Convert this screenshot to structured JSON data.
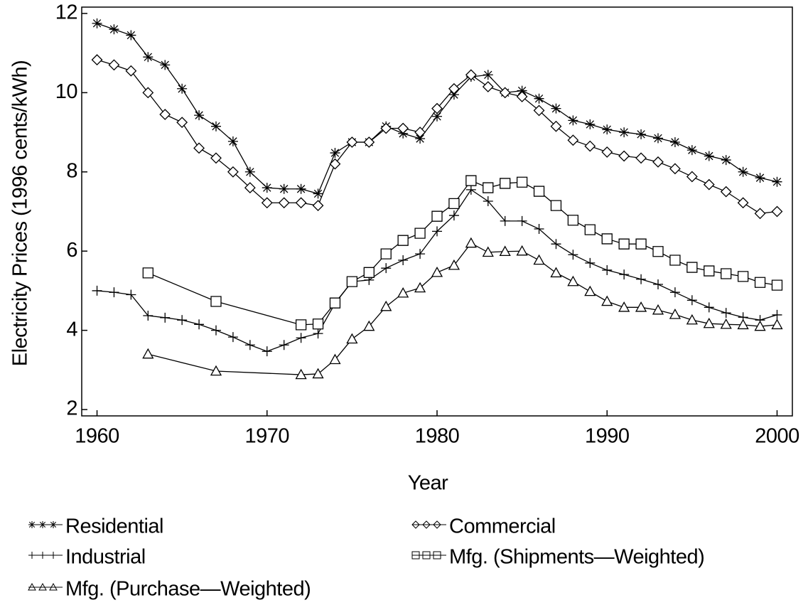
{
  "chart_data": {
    "type": "line",
    "x_label": "Year",
    "y_label": "Electricity Prices (1996 cents/kWh)",
    "xlim": [
      1959.1,
      2000.9
    ],
    "ylim": [
      1.84,
      12.16
    ],
    "xticks": [
      1960,
      1970,
      1980,
      1990,
      2000
    ],
    "yticks": [
      2,
      4,
      6,
      8,
      10,
      12
    ],
    "x": [
      1960,
      1961,
      1962,
      1963,
      1964,
      1965,
      1966,
      1967,
      1968,
      1969,
      1970,
      1971,
      1972,
      1973,
      1974,
      1975,
      1976,
      1977,
      1978,
      1979,
      1980,
      1981,
      1982,
      1983,
      1984,
      1985,
      1986,
      1987,
      1988,
      1989,
      1990,
      1991,
      1992,
      1993,
      1994,
      1995,
      1996,
      1997,
      1998,
      1999,
      2000
    ],
    "series": [
      {
        "name": "Residential",
        "color": "#000000",
        "marker": "star",
        "values": [
          11.75,
          11.6,
          11.45,
          10.9,
          10.7,
          10.1,
          9.43,
          9.15,
          8.77,
          8.0,
          7.6,
          7.57,
          7.57,
          7.45,
          8.48,
          8.75,
          8.75,
          9.15,
          8.97,
          8.84,
          9.4,
          9.95,
          10.4,
          10.45,
          10.0,
          10.05,
          9.85,
          9.6,
          9.3,
          9.2,
          9.07,
          9.0,
          8.95,
          8.85,
          8.75,
          8.55,
          8.4,
          8.3,
          8.0,
          7.85,
          7.75
        ]
      },
      {
        "name": "Commercial",
        "color": "#000000",
        "marker": "diamond",
        "values": [
          10.83,
          10.7,
          10.55,
          10.0,
          9.45,
          9.25,
          8.6,
          8.35,
          8.0,
          7.6,
          7.22,
          7.22,
          7.22,
          7.15,
          8.2,
          8.75,
          8.75,
          9.1,
          9.1,
          9.0,
          9.6,
          10.1,
          10.45,
          10.15,
          10.0,
          9.9,
          9.55,
          9.15,
          8.8,
          8.65,
          8.5,
          8.4,
          8.35,
          8.25,
          8.08,
          7.88,
          7.68,
          7.5,
          7.22,
          6.95,
          7.0
        ]
      },
      {
        "name": "Industrial",
        "color": "#000000",
        "marker": "plus",
        "values": [
          5.0,
          4.96,
          4.9,
          4.37,
          4.32,
          4.26,
          4.15,
          4.0,
          3.83,
          3.63,
          3.47,
          3.63,
          3.81,
          3.92,
          4.68,
          5.23,
          5.27,
          5.57,
          5.77,
          5.93,
          6.5,
          6.9,
          7.55,
          7.26,
          6.76,
          6.76,
          6.56,
          6.18,
          5.91,
          5.7,
          5.52,
          5.41,
          5.29,
          5.16,
          4.96,
          4.76,
          4.58,
          4.44,
          4.33,
          4.26,
          4.39
        ]
      },
      {
        "name": "Mfg.  (Shipments—Weighted)",
        "color": "#000000",
        "marker": "square",
        "x": [
          1963,
          1967,
          1972,
          1973,
          1974,
          1975,
          1976,
          1977,
          1978,
          1979,
          1980,
          1981,
          1982,
          1983,
          1984,
          1985,
          1986,
          1987,
          1988,
          1989,
          1990,
          1991,
          1992,
          1993,
          1994,
          1995,
          1996,
          1997,
          1998,
          1999,
          2000
        ],
        "values": [
          5.45,
          4.73,
          4.14,
          4.16,
          4.69,
          5.23,
          5.46,
          5.93,
          6.27,
          6.45,
          6.88,
          7.2,
          7.78,
          7.6,
          7.71,
          7.74,
          7.51,
          7.15,
          6.78,
          6.54,
          6.31,
          6.18,
          6.18,
          5.99,
          5.77,
          5.59,
          5.5,
          5.43,
          5.36,
          5.21,
          5.14
        ]
      },
      {
        "name": "Mfg.  (Purchase—Weighted)",
        "color": "#000000",
        "marker": "triangle",
        "x": [
          1963,
          1967,
          1972,
          1973,
          1974,
          1975,
          1976,
          1977,
          1978,
          1979,
          1980,
          1981,
          1982,
          1983,
          1984,
          1985,
          1986,
          1987,
          1988,
          1989,
          1990,
          1991,
          1992,
          1993,
          1994,
          1995,
          1996,
          1997,
          1998,
          1999,
          2000
        ],
        "values": [
          3.4,
          2.97,
          2.88,
          2.9,
          3.26,
          3.78,
          4.1,
          4.6,
          4.94,
          5.07,
          5.46,
          5.64,
          6.2,
          5.97,
          5.99,
          6.0,
          5.77,
          5.45,
          5.23,
          4.98,
          4.73,
          4.58,
          4.58,
          4.51,
          4.4,
          4.26,
          4.17,
          4.15,
          4.14,
          4.1,
          4.14
        ]
      }
    ]
  }
}
